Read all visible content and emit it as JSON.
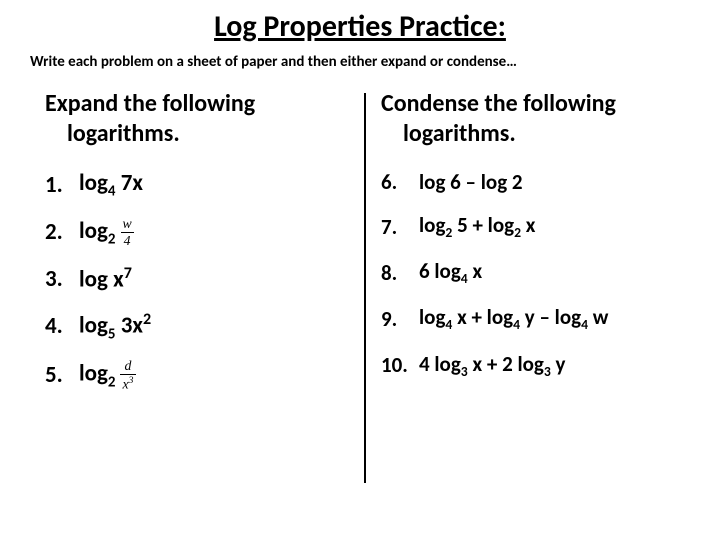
{
  "title": "Log Properties Practice:",
  "instruction": "Write each problem on a sheet of paper and then either expand or condense…",
  "left": {
    "heading_line1": "Expand the following",
    "heading_line2": "logarithms.",
    "items": [
      {
        "n": "1.",
        "pre": "log",
        "sub": "4",
        "post": " 7x"
      },
      {
        "n": "2.",
        "pre": "log",
        "sub": "2",
        "frac_n": "w",
        "frac_d": "4"
      },
      {
        "n": "3.",
        "pre": "log x",
        "sup": "7"
      },
      {
        "n": "4.",
        "pre": "log",
        "sub": "5",
        "post": " 3x",
        "sup2": "2"
      },
      {
        "n": "5.",
        "pre": " log",
        "sub": "2",
        "frac_n": "d",
        "frac_d": "x",
        "frac_d_sup": "3"
      }
    ]
  },
  "right": {
    "heading_line1": "Condense the following",
    "heading_line2": "logarithms.",
    "items": [
      {
        "n": "6.",
        "text": " log 6 – log 2"
      },
      {
        "n": "7.",
        "parts": [
          "log",
          {
            "sub": "2"
          },
          " 5 + log",
          {
            "sub": "2"
          },
          " x"
        ]
      },
      {
        "n": "8.",
        "parts": [
          " 6 log",
          {
            "sub": "4"
          },
          " x"
        ]
      },
      {
        "n": "9.",
        "parts": [
          "  log",
          {
            "sub": "4"
          },
          " x + log",
          {
            "sub": "4"
          },
          " y – log",
          {
            "sub": "4"
          },
          " w"
        ]
      },
      {
        "n": "10.",
        "parts": [
          "  4 log",
          {
            "sub": "3"
          },
          " x + 2 log",
          {
            "sub": "3"
          },
          " y"
        ]
      }
    ]
  },
  "colors": {
    "bg": "#ffffff",
    "text": "#000000",
    "divider": "#000000"
  }
}
